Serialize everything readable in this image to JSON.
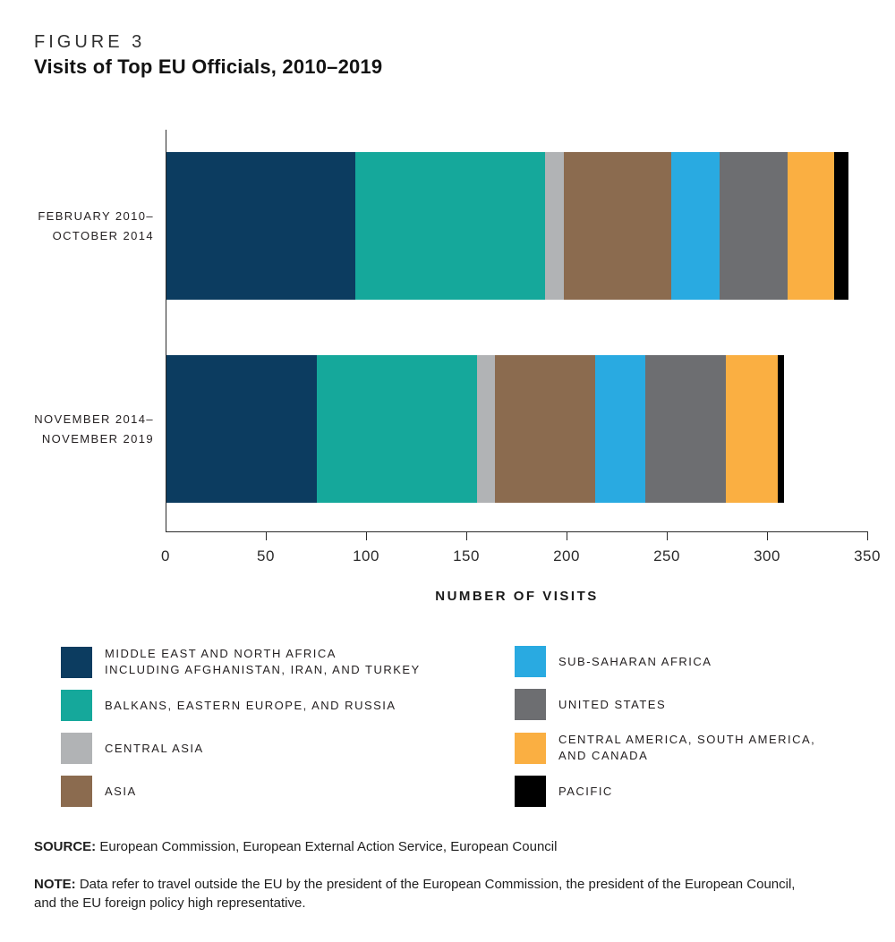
{
  "header": {
    "figure_label": "FIGURE 3",
    "title": "Visits of Top EU Officials, 2010–2019"
  },
  "chart_data": {
    "type": "bar",
    "orientation": "horizontal",
    "stacked": true,
    "categories": [
      [
        "FEBRUARY 2010–",
        "OCTOBER 2014"
      ],
      [
        "NOVEMBER 2014–",
        "NOVEMBER 2019"
      ]
    ],
    "series": [
      {
        "name": "MIDDLE EAST AND NORTH AFRICA INCLUDING AFGHANISTAN, IRAN, AND TURKEY",
        "color": "#0c3c60",
        "values": [
          94,
          75
        ]
      },
      {
        "name": "BALKANS, EASTERN EUROPE, AND RUSSIA",
        "color": "#15a89b",
        "values": [
          95,
          80
        ]
      },
      {
        "name": "CENTRAL ASIA",
        "color": "#b1b3b5",
        "values": [
          9,
          9
        ]
      },
      {
        "name": "ASIA",
        "color": "#8b6b4f",
        "values": [
          54,
          50
        ]
      },
      {
        "name": "SUB-SAHARAN AFRICA",
        "color": "#29aae1",
        "values": [
          24,
          25
        ]
      },
      {
        "name": "UNITED STATES",
        "color": "#6d6e71",
        "values": [
          34,
          40
        ]
      },
      {
        "name": "CENTRAL AMERICA, SOUTH AMERICA, AND CANADA",
        "color": "#faaf42",
        "values": [
          23,
          26
        ]
      },
      {
        "name": "PACIFIC",
        "color": "#000000",
        "values": [
          7,
          3
        ]
      }
    ],
    "totals": [
      340,
      308
    ],
    "xlabel": "NUMBER OF VISITS",
    "xlim": [
      0,
      350
    ],
    "xticks": [
      0,
      50,
      100,
      150,
      200,
      250,
      300,
      350
    ],
    "grid": false,
    "legend_position": "bottom-two-columns"
  },
  "legend": {
    "left": [
      {
        "series": 0,
        "lines": [
          "MIDDLE EAST AND NORTH AFRICA",
          "INCLUDING AFGHANISTAN, IRAN, AND TURKEY"
        ]
      },
      {
        "series": 1,
        "lines": [
          "BALKANS, EASTERN EUROPE, AND RUSSIA"
        ]
      },
      {
        "series": 2,
        "lines": [
          "CENTRAL ASIA"
        ]
      },
      {
        "series": 3,
        "lines": [
          "ASIA"
        ]
      }
    ],
    "right": [
      {
        "series": 4,
        "lines": [
          "SUB-SAHARAN AFRICA"
        ]
      },
      {
        "series": 5,
        "lines": [
          "UNITED STATES"
        ]
      },
      {
        "series": 6,
        "lines": [
          "CENTRAL AMERICA, SOUTH AMERICA,",
          "AND CANADA"
        ]
      },
      {
        "series": 7,
        "lines": [
          "PACIFIC"
        ]
      }
    ]
  },
  "footer": {
    "source_label": "SOURCE:",
    "source_text": "European Commission, European External Action Service, European Council",
    "note_label": "NOTE:",
    "note_text": "Data refer to travel outside the EU by the president of the European Commission, the president of the European Council, and the EU foreign policy high representative."
  }
}
